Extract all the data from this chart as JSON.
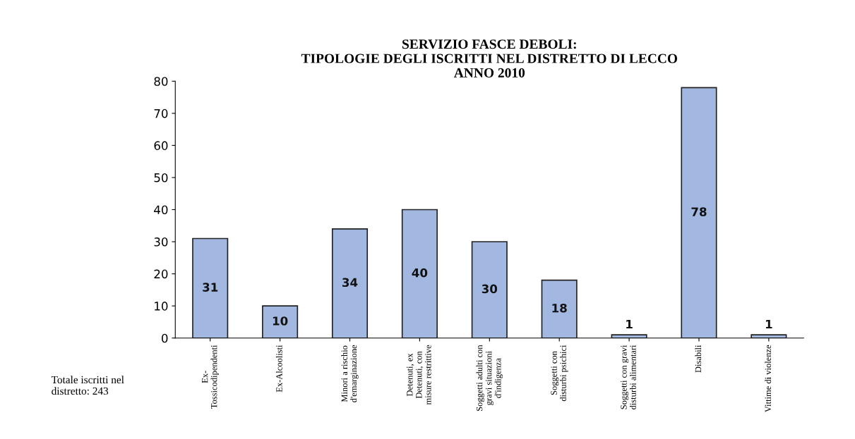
{
  "chart_data": {
    "type": "bar",
    "title": "SERVIZIO FASCE DEBOLI:\nTIPOLOGIE DEGLI ISCRITTI NEL DISTRETTO DI LECCO\nANNO 2010",
    "categories": [
      "Ex-\nTossicodipendenti",
      "Ex-Alcoolisti",
      "Minori a rischio\nd'emarginazione",
      "Detenuti, ex\nDetenuti, con\nmisure restrittive",
      "Soggetti adulti con\ngravi situazioni\nd'indigenza",
      "Soggetti con\ndisturbi psichici",
      "Soggetti con gravi\ndisturbi alimentari",
      "Disabili",
      "Vittime di violenze"
    ],
    "values": [
      31,
      10,
      34,
      40,
      30,
      18,
      1,
      78,
      1
    ],
    "color": "#a3b8e0",
    "ylim": [
      0,
      80
    ],
    "yticks": [
      0,
      10,
      20,
      30,
      40,
      50,
      60,
      70,
      80
    ],
    "grid": false,
    "legend": false,
    "data_labels": true,
    "annotations": [
      "Totale iscritti nel\ndistretto: 243"
    ]
  }
}
